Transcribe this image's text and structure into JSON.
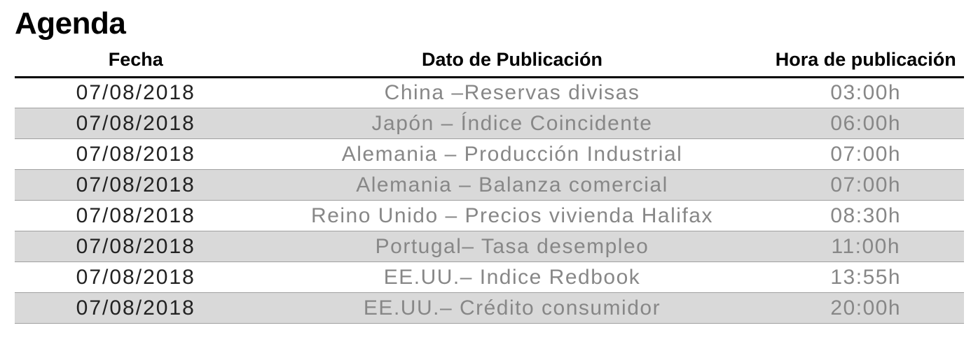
{
  "page": {
    "title": "Agenda"
  },
  "table": {
    "columns": [
      {
        "key": "fecha",
        "label": "Fecha"
      },
      {
        "key": "dato",
        "label": "Dato de Publicación"
      },
      {
        "key": "hora",
        "label": "Hora de publicación"
      }
    ],
    "rows": [
      {
        "fecha": "07/08/2018",
        "dato": "China –Reservas divisas",
        "hora": "03:00h"
      },
      {
        "fecha": "07/08/2018",
        "dato": "Japón – Índice Coincidente",
        "hora": "06:00h"
      },
      {
        "fecha": "07/08/2018",
        "dato": "Alemania – Producción Industrial",
        "hora": "07:00h"
      },
      {
        "fecha": "07/08/2018",
        "dato": "Alemania – Balanza comercial",
        "hora": "07:00h"
      },
      {
        "fecha": "07/08/2018",
        "dato": "Reino Unido – Precios vivienda Halifax",
        "hora": "08:30h"
      },
      {
        "fecha": "07/08/2018",
        "dato": "Portugal– Tasa desempleo",
        "hora": "11:00h"
      },
      {
        "fecha": "07/08/2018",
        "dato": "EE.UU.– Indice Redbook",
        "hora": "13:55h"
      },
      {
        "fecha": "07/08/2018",
        "dato": "EE.UU.– Crédito consumidor",
        "hora": "20:00h"
      }
    ]
  },
  "colors": {
    "row_alt_background": "#d9d9d9",
    "row_border": "#a0a0a0",
    "header_rule": "#000000",
    "date_text": "#222222",
    "muted_text": "#878787"
  }
}
